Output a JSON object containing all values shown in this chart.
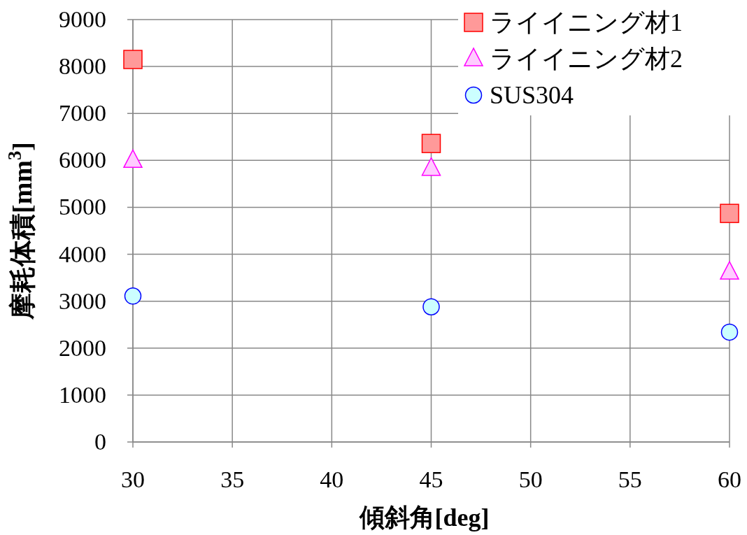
{
  "chart_data": {
    "type": "scatter",
    "xlabel": "傾斜角[deg]",
    "ylabel": "摩耗体積[mm$^{3}$]",
    "x": [
      30,
      45,
      60
    ],
    "xlim": [
      30,
      60
    ],
    "xticks": [
      30,
      35,
      40,
      45,
      50,
      55,
      60
    ],
    "ylim": [
      0,
      9000
    ],
    "yticks": [
      0,
      1000,
      2000,
      3000,
      4000,
      5000,
      6000,
      7000,
      8000,
      9000
    ],
    "grid": true,
    "legend": "top right",
    "series": [
      {
        "name": "ライイニング材1",
        "color": "#ff9999",
        "marker": "square",
        "values": [
          8150,
          6360,
          4870
        ]
      },
      {
        "name": "ライイニング材2",
        "color": "#ffccff",
        "marker": "triangle",
        "values": [
          6000,
          5830,
          3620
        ]
      },
      {
        "name": "SUS304",
        "color": "#ccffff",
        "marker": "circle",
        "values": [
          3110,
          2880,
          2340
        ]
      }
    ]
  }
}
